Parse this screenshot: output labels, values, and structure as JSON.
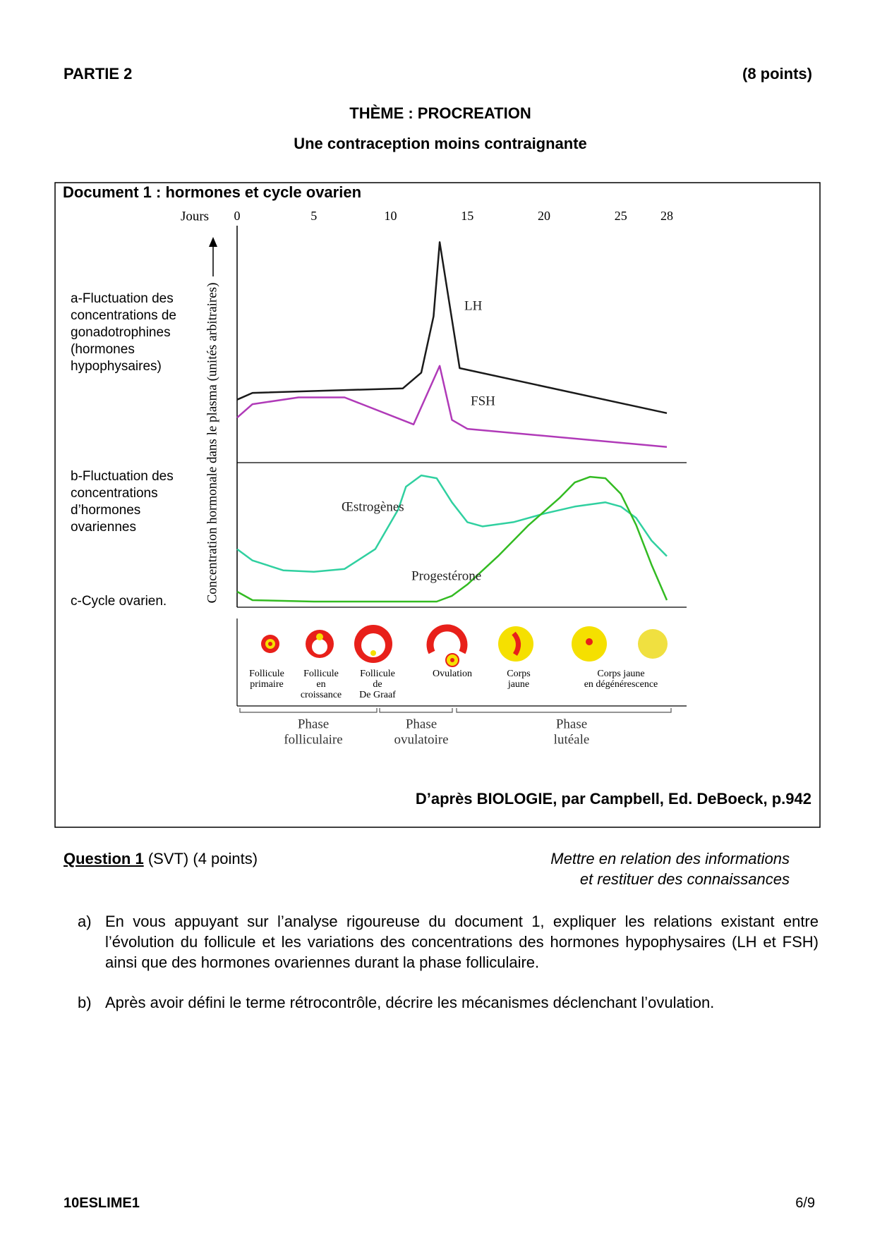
{
  "header": {
    "part": "PARTIE 2",
    "points": "(8 points)",
    "theme": "THÈME : PROCREATION",
    "subtitle": "Une contraception moins contraignante"
  },
  "chart_data": [
    {
      "type": "line",
      "title": "Document 1 : hormones et cycle ovarien",
      "x_label": "Jours",
      "y_label": "Concentration hormonale dans le plasma (unités arbitraires)",
      "caption": [
        "a-Fluctuation des",
        "concentrations de",
        "gonadotrophines",
        "(hormones",
        "hypophysaires)"
      ],
      "xlim": [
        0,
        28
      ],
      "xticks": [
        0,
        5,
        10,
        15,
        20,
        25,
        28
      ],
      "ylim": [
        0,
        100
      ],
      "series": [
        {
          "name": "LH",
          "color": "#1a1a1a",
          "x": [
            0,
            1,
            10.8,
            12,
            12.8,
            13.2,
            14.5,
            28
          ],
          "values": [
            28,
            31,
            33,
            40,
            65,
            98,
            42,
            22
          ]
        },
        {
          "name": "FSH",
          "color": "#b03ab8",
          "x": [
            0,
            1,
            4,
            7,
            11.5,
            13.2,
            14,
            15,
            28
          ],
          "values": [
            20,
            26,
            29,
            29,
            17,
            43,
            19,
            15,
            7
          ]
        }
      ]
    },
    {
      "type": "line",
      "caption": [
        "b-Fluctuation des",
        "concentrations",
        "d’hormones",
        "ovariennes"
      ],
      "xlim": [
        0,
        28
      ],
      "ylim": [
        0,
        100
      ],
      "series": [
        {
          "name": "Œstrogènes",
          "color": "#30d0a0",
          "x": [
            0,
            1,
            3,
            5,
            7,
            9,
            10.5,
            11,
            12,
            13,
            14,
            15,
            16,
            18,
            20,
            22,
            24,
            25,
            26,
            27,
            28
          ],
          "values": [
            41,
            33,
            26,
            25,
            27,
            41,
            69,
            85,
            93,
            91,
            74,
            60,
            57,
            60,
            66,
            71,
            74,
            71,
            63,
            47,
            36
          ]
        },
        {
          "name": "Progestérone",
          "color": "#33bb22",
          "x": [
            0,
            1,
            5,
            13,
            14,
            15,
            17,
            19,
            21,
            22,
            23,
            24,
            25,
            26,
            27,
            28
          ],
          "values": [
            11,
            5,
            4,
            4,
            8,
            16,
            36,
            58,
            77,
            88,
            92,
            91,
            80,
            58,
            30,
            5
          ]
        }
      ]
    }
  ],
  "ovarian_cycle": {
    "caption": "c-Cycle ovarien.",
    "stages": [
      [
        "Follicule",
        "primaire"
      ],
      [
        "Follicule",
        "en",
        "croissance"
      ],
      [
        "Follicule",
        "de",
        "De Graaf"
      ],
      [
        "Ovulation"
      ],
      [
        "Corps",
        "jaune"
      ],
      [
        "Corps jaune",
        "en dégénérescence"
      ]
    ],
    "phases": [
      [
        "Phase",
        "folliculaire"
      ],
      [
        "Phase",
        "ovulatoire"
      ],
      [
        "Phase",
        "lutéale"
      ]
    ]
  },
  "source": "D’après BIOLOGIE, par Campbell, Ed. DeBoeck, p.942",
  "question": {
    "label": "Question 1",
    "detail": "(SVT) (4 points)",
    "skills": [
      "Mettre en relation des informations",
      "et restituer des connaissances"
    ],
    "items": [
      {
        "marker": "a)",
        "text": "En vous appuyant sur l’analyse rigoureuse du document 1, expliquer les relations existant entre l’évolution du follicule et les variations des concentrations des hormones hypophysaires (LH et FSH) ainsi que des hormones ovariennes durant la phase folliculaire."
      },
      {
        "marker": "b)",
        "text": "Après avoir défini le terme rétrocontrôle, décrire les mécanismes déclenchant l’ovulation."
      }
    ]
  },
  "footer": {
    "code": "10ESLIME1",
    "page": "6/9"
  }
}
